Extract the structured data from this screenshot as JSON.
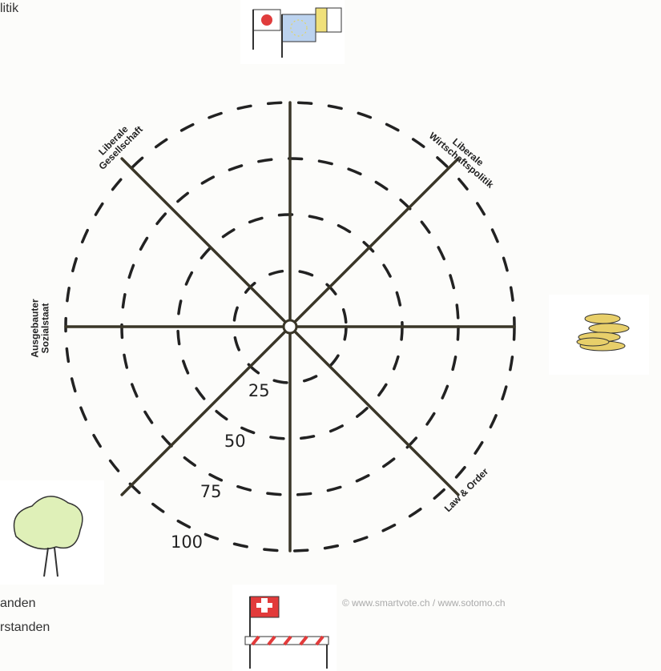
{
  "chart_data": {
    "type": "radar",
    "rlim": [
      0,
      100
    ],
    "rticks": [
      25,
      50,
      75,
      100
    ],
    "axes": [
      null,
      [
        "Liberale",
        "Wirtschaftspolitik"
      ],
      null,
      [
        "Law & Order"
      ],
      null,
      null,
      [
        "Ausgebauter",
        "Sozialstaat"
      ],
      [
        "Liberale",
        "Gesellschaft"
      ]
    ],
    "source": "© www.smartvote.ch / www.sotomo.ch",
    "annotations": [
      "litik",
      "anden",
      "rstanden"
    ]
  }
}
